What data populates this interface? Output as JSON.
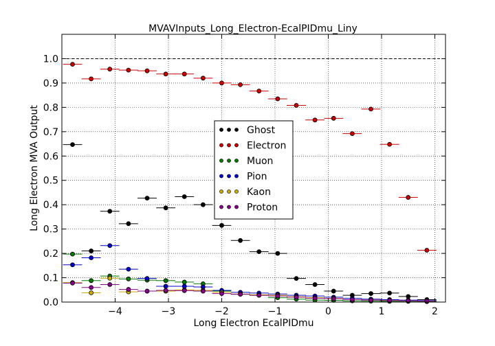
{
  "chart_data": {
    "type": "scatter",
    "title": "MVAVInputs_Long_Electron-EcalPIDmu_Liny",
    "xlabel": "Long Electron EcalPIDmu",
    "ylabel": "Long Electron MVA Output",
    "xlim": [
      -5.0,
      2.2
    ],
    "ylim": [
      0.0,
      1.1
    ],
    "x_ticks": [
      "−4",
      "−3",
      "−2",
      "−1",
      "0",
      "1",
      "2"
    ],
    "x_tick_values": [
      -4,
      -3,
      -2,
      -1,
      0,
      1,
      2
    ],
    "y_ticks": [
      "0.0",
      "0.1",
      "0.2",
      "0.3",
      "0.4",
      "0.5",
      "0.6",
      "0.7",
      "0.8",
      "0.9",
      "1.0"
    ],
    "y_tick_values": [
      0.0,
      0.1,
      0.2,
      0.3,
      0.4,
      0.5,
      0.6,
      0.7,
      0.8,
      0.9,
      1.0
    ],
    "reference_line": 1.0,
    "grid": true,
    "legend_position": "center",
    "bin_half_width": 0.18,
    "series": [
      {
        "name": "Ghost",
        "color": "#000000",
        "x": [
          -4.8,
          -4.45,
          -4.1,
          -3.75,
          -3.4,
          -3.05,
          -2.7,
          -2.35,
          -2.0,
          -1.65,
          -1.3,
          -0.95,
          -0.6,
          -0.25,
          0.1,
          0.45,
          0.8,
          1.15,
          1.5,
          1.85
        ],
        "y": [
          0.647,
          0.21,
          0.373,
          0.322,
          0.427,
          0.387,
          0.433,
          0.4,
          0.315,
          0.253,
          0.207,
          0.2,
          0.097,
          0.072,
          0.045,
          0.028,
          0.035,
          0.037,
          0.023,
          0.01
        ]
      },
      {
        "name": "Electron",
        "color": "#cc0000",
        "x": [
          -4.8,
          -4.45,
          -4.1,
          -3.75,
          -3.4,
          -3.05,
          -2.7,
          -2.35,
          -2.0,
          -1.65,
          -1.3,
          -0.95,
          -0.6,
          -0.25,
          0.1,
          0.45,
          0.8,
          1.15,
          1.5,
          1.85
        ],
        "y": [
          0.977,
          0.917,
          0.957,
          0.953,
          0.95,
          0.937,
          0.937,
          0.92,
          0.9,
          0.893,
          0.867,
          0.835,
          0.808,
          0.748,
          0.755,
          0.692,
          0.793,
          0.648,
          0.43,
          0.213
        ]
      },
      {
        "name": "Muon",
        "color": "#007a00",
        "x": [
          -4.8,
          -4.45,
          -4.1,
          -3.75,
          -3.4,
          -3.05,
          -2.7,
          -2.35,
          -2.0,
          -1.65,
          -1.3,
          -0.95,
          -0.6,
          -0.25,
          0.1,
          0.45,
          0.8,
          1.15,
          1.5,
          1.85
        ],
        "y": [
          0.197,
          0.088,
          0.107,
          0.095,
          0.09,
          0.088,
          0.082,
          0.075,
          0.045,
          0.032,
          0.028,
          0.018,
          0.012,
          0.008,
          0.007,
          0.005,
          0.004,
          0.003,
          0.003,
          0.002
        ]
      },
      {
        "name": "Pion",
        "color": "#0000cc",
        "x": [
          -4.8,
          -4.45,
          -4.1,
          -3.75,
          -3.4,
          -3.05,
          -2.7,
          -2.35,
          -2.0,
          -1.65,
          -1.3,
          -0.95,
          -0.6,
          -0.25,
          0.1,
          0.45,
          0.8,
          1.15,
          1.5,
          1.85
        ],
        "y": [
          0.153,
          0.182,
          0.232,
          0.135,
          0.097,
          0.065,
          0.065,
          0.062,
          0.048,
          0.04,
          0.037,
          0.033,
          0.028,
          0.025,
          0.02,
          0.015,
          0.012,
          0.01,
          0.008,
          0.006
        ]
      },
      {
        "name": "Kaon",
        "color": "#ccaa00",
        "x": [
          -4.8,
          -4.45,
          -4.1,
          -3.75,
          -3.4,
          -3.05,
          -2.7,
          -2.35,
          -2.0,
          -1.65,
          -1.3,
          -0.95,
          -0.6,
          -0.25,
          0.1,
          0.45,
          0.8,
          1.15,
          1.5,
          1.85
        ],
        "y": [
          0.08,
          0.038,
          0.098,
          0.042,
          0.045,
          0.045,
          0.05,
          0.048,
          0.04,
          0.033,
          0.03,
          0.028,
          0.022,
          0.018,
          0.015,
          0.01,
          0.008,
          0.007,
          0.005,
          0.004
        ]
      },
      {
        "name": "Proton",
        "color": "#880088",
        "x": [
          -4.8,
          -4.45,
          -4.1,
          -3.75,
          -3.4,
          -3.05,
          -2.7,
          -2.35,
          -2.0,
          -1.65,
          -1.3,
          -0.95,
          -0.6,
          -0.25,
          0.1,
          0.45,
          0.8,
          1.15,
          1.5,
          1.85
        ],
        "y": [
          0.078,
          0.06,
          0.072,
          0.052,
          0.045,
          0.048,
          0.047,
          0.045,
          0.035,
          0.032,
          0.028,
          0.025,
          0.02,
          0.016,
          0.014,
          0.01,
          0.008,
          0.006,
          0.005,
          0.004
        ]
      }
    ]
  }
}
